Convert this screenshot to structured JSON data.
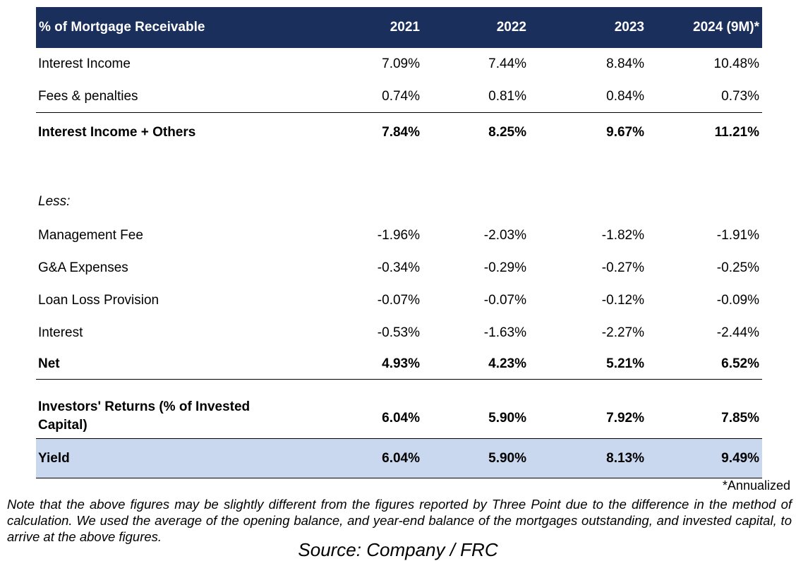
{
  "table": {
    "header": {
      "label": "% of Mortgage Receivable",
      "years": [
        "2021",
        "2022",
        "2023",
        "2024 (9M)*"
      ]
    },
    "rows": {
      "interest_income": {
        "label": "Interest Income",
        "values": [
          "7.09%",
          "7.44%",
          "8.84%",
          "10.48%"
        ]
      },
      "fees": {
        "label": "Fees & penalties",
        "values": [
          "0.74%",
          "0.81%",
          "0.84%",
          "0.73%"
        ]
      },
      "subtotal": {
        "label": "Interest Income + Others",
        "values": [
          "7.84%",
          "8.25%",
          "9.67%",
          "11.21%"
        ]
      },
      "less": {
        "label": "Less:"
      },
      "management_fee": {
        "label": "Management Fee",
        "values": [
          "-1.96%",
          "-2.03%",
          "-1.82%",
          "-1.91%"
        ]
      },
      "ga_expenses": {
        "label": "G&A Expenses",
        "values": [
          "-0.34%",
          "-0.29%",
          "-0.27%",
          "-0.25%"
        ]
      },
      "loan_loss": {
        "label": "Loan Loss Provision",
        "values": [
          "-0.07%",
          "-0.07%",
          "-0.12%",
          "-0.09%"
        ]
      },
      "interest": {
        "label": "Interest",
        "values": [
          "-0.53%",
          "-1.63%",
          "-2.27%",
          "-2.44%"
        ]
      },
      "net": {
        "label": "Net",
        "values": [
          "4.93%",
          "4.23%",
          "5.21%",
          "6.52%"
        ]
      },
      "investors_returns": {
        "label_line1": "Investors' Returns (% of Invested",
        "label_line2": "Capital)",
        "values": [
          "6.04%",
          "5.90%",
          "7.92%",
          "7.85%"
        ]
      },
      "yield": {
        "label": "Yield",
        "values": [
          "6.04%",
          "5.90%",
          "8.13%",
          "9.49%"
        ]
      }
    }
  },
  "footnote": "*Annualized",
  "note": "Note that the above figures may be slightly different from the figures reported by Three Point due to the difference in the method of calculation. We used the average of the opening balance, and year-end balance of the mortgages outstanding, and invested capital, to arrive at the above figures.",
  "source": "Source: Company / FRC",
  "colors": {
    "header_bg": "#1b2f5c",
    "yield_bg": "#c9d7ef"
  }
}
